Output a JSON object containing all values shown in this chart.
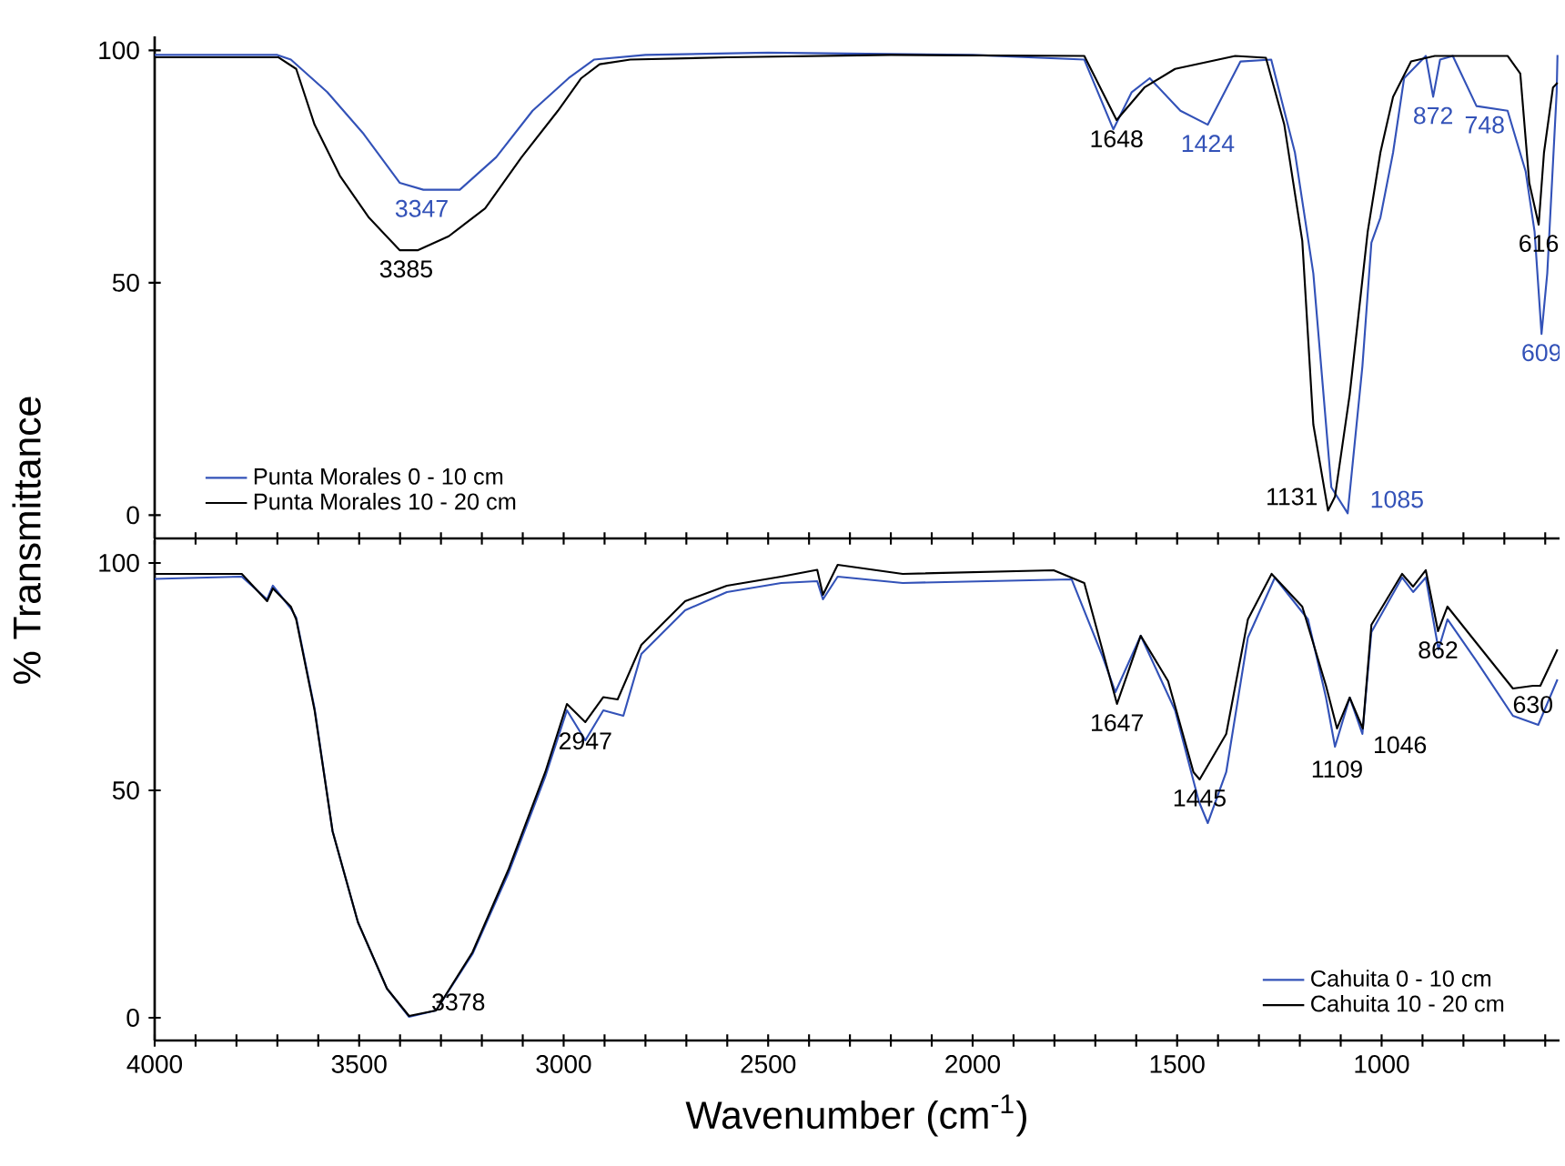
{
  "chart_data": [
    {
      "type": "line",
      "xlim": [
        4000,
        565
      ],
      "ylim": [
        -5,
        103
      ],
      "tick_labels": "y",
      "legend": "bottom left",
      "line_style": "solid",
      "xticks": [
        4000,
        {
          "value": 3900,
          "label": null
        },
        {
          "value": 3800,
          "label": null
        },
        {
          "value": 3700,
          "label": null
        },
        {
          "value": 3600,
          "label": null
        },
        3500,
        {
          "value": 3400,
          "label": null
        },
        {
          "value": 3300,
          "label": null
        },
        {
          "value": 3200,
          "label": null
        },
        {
          "value": 3100,
          "label": null
        },
        3000,
        {
          "value": 2900,
          "label": null
        },
        {
          "value": 2800,
          "label": null
        },
        {
          "value": 2700,
          "label": null
        },
        {
          "value": 2600,
          "label": null
        },
        2500,
        {
          "value": 2400,
          "label": null
        },
        {
          "value": 2300,
          "label": null
        },
        {
          "value": 2200,
          "label": null
        },
        {
          "value": 2100,
          "label": null
        },
        2000,
        {
          "value": 1900,
          "label": null
        },
        {
          "value": 1800,
          "label": null
        },
        {
          "value": 1700,
          "label": null
        },
        {
          "value": 1600,
          "label": null
        },
        1500,
        {
          "value": 1400,
          "label": null
        },
        {
          "value": 1300,
          "label": null
        },
        {
          "value": 1200,
          "label": null
        },
        {
          "value": 1100,
          "label": null
        },
        1000,
        {
          "value": 900,
          "label": null
        },
        {
          "value": 800,
          "label": null
        },
        {
          "value": 700,
          "label": null
        },
        {
          "value": 600,
          "label": null
        }
      ],
      "yticks": [
        0,
        50,
        100
      ],
      "series": [
        {
          "name": "Punta Morales 0 - 10 cm",
          "color": "#3352b8",
          "x": [
            4000,
            3900,
            3800,
            3700,
            3667,
            3578,
            3489,
            3401,
            3343,
            3254,
            3165,
            3076,
            2988,
            2926,
            2800,
            2500,
            2000,
            1727,
            1656,
            1611,
            1567,
            1492,
            1425,
            1345,
            1270,
            1212,
            1167,
            1123,
            1083,
            1047,
            1025,
            1003,
            972,
            945,
            892,
            874,
            857,
            826,
            768,
            692,
            648,
            626,
            609,
            595,
            572,
            570
          ],
          "values": [
            99,
            99,
            99,
            99,
            98,
            91,
            82,
            71.5,
            70,
            70,
            77,
            87,
            94,
            98,
            99,
            99.5,
            99,
            98,
            83,
            91,
            94,
            87,
            84,
            97.6,
            98,
            78,
            52,
            6,
            0.4,
            32,
            58.6,
            64,
            78,
            94,
            98.8,
            90,
            98,
            98.8,
            88,
            87,
            74,
            61,
            39,
            52,
            91,
            99
          ]
        },
        {
          "name": "Punta Morales 10 - 20 cm",
          "color": "#000000",
          "x": [
            4000,
            3800,
            3698,
            3654,
            3609,
            3547,
            3476,
            3401,
            3356,
            3281,
            3192,
            3103,
            3014,
            2957,
            2912,
            2837,
            2600,
            2200,
            1727,
            1648,
            1580,
            1505,
            1358,
            1283,
            1238,
            1194,
            1167,
            1131,
            1114,
            1078,
            1034,
            1003,
            972,
            928,
            870,
            692,
            661,
            639,
            616,
            603,
            581,
            570
          ],
          "values": [
            98.5,
            98.5,
            98.5,
            96,
            84,
            73,
            64,
            57,
            57,
            60,
            66,
            77,
            87,
            94,
            97,
            98,
            98.5,
            99,
            98.8,
            85,
            92,
            96,
            98.8,
            98.4,
            84,
            59,
            19.5,
            1,
            4,
            26,
            61,
            78,
            90,
            97.6,
            98.8,
            98.8,
            95,
            71.5,
            62.5,
            78,
            92,
            93
          ]
        }
      ],
      "annotations": [
        {
          "text": "3347",
          "x": 3347,
          "y": 70
        },
        {
          "text": "3385",
          "x": 3385,
          "y": 57
        },
        {
          "text": "1648",
          "x": 1648,
          "y": 85
        },
        {
          "text": "1424",
          "x": 1425,
          "y": 84
        },
        {
          "text": "872",
          "x": 874,
          "y": 90
        },
        {
          "text": "748",
          "x": 748,
          "y": 88
        },
        {
          "text": "616",
          "x": 616,
          "y": 62.5
        },
        {
          "text": "609",
          "x": 609,
          "y": 39
        },
        {
          "text": "1131",
          "x": 1131,
          "y": 1
        },
        {
          "text": "1085",
          "x": 1083,
          "y": 0.4
        }
      ]
    },
    {
      "type": "line",
      "xlim": [
        4000,
        565
      ],
      "ylim": [
        -5,
        105
      ],
      "xlabel": "Wavenumber (cm$^{-1}$)",
      "ylabel": "% Transmittance",
      "legend": "bottom right",
      "line_style": "solid",
      "xticks": [
        4000,
        {
          "value": 3900,
          "label": null
        },
        {
          "value": 3800,
          "label": null
        },
        {
          "value": 3700,
          "label": null
        },
        {
          "value": 3600,
          "label": null
        },
        3500,
        {
          "value": 3400,
          "label": null
        },
        {
          "value": 3300,
          "label": null
        },
        {
          "value": 3200,
          "label": null
        },
        {
          "value": 3100,
          "label": null
        },
        3000,
        {
          "value": 2900,
          "label": null
        },
        {
          "value": 2800,
          "label": null
        },
        {
          "value": 2700,
          "label": null
        },
        {
          "value": 2600,
          "label": null
        },
        2500,
        {
          "value": 2400,
          "label": null
        },
        {
          "value": 2300,
          "label": null
        },
        {
          "value": 2200,
          "label": null
        },
        {
          "value": 2100,
          "label": null
        },
        2000,
        {
          "value": 1900,
          "label": null
        },
        {
          "value": 1800,
          "label": null
        },
        {
          "value": 1700,
          "label": null
        },
        {
          "value": 1600,
          "label": null
        },
        1500,
        {
          "value": 1400,
          "label": null
        },
        {
          "value": 1300,
          "label": null
        },
        {
          "value": 1200,
          "label": null
        },
        {
          "value": 1100,
          "label": null
        },
        1000,
        {
          "value": 900,
          "label": null
        },
        {
          "value": 800,
          "label": null
        },
        {
          "value": 700,
          "label": null
        },
        {
          "value": 600,
          "label": null
        }
      ],
      "yticks": [
        0,
        50,
        100
      ],
      "series": [
        {
          "name": "Cahuita 0 - 10 cm",
          "color": "#3352b8",
          "x": [
            4000,
            3787,
            3725,
            3711,
            3667,
            3654,
            3609,
            3565,
            3503,
            3432,
            3378,
            3312,
            3223,
            3134,
            3045,
            2992,
            2947,
            2903,
            2854,
            2810,
            2703,
            2601,
            2468,
            2380,
            2366,
            2330,
            2171,
            1758,
            1683,
            1651,
            1589,
            1505,
            1447,
            1425,
            1380,
            1327,
            1261,
            1180,
            1136,
            1114,
            1078,
            1047,
            1025,
            950,
            923,
            892,
            861,
            839,
            768,
            679,
            617,
            570
          ],
          "values": [
            96.5,
            97,
            92,
            95,
            90,
            88,
            68,
            41,
            21,
            6.4,
            0.2,
            1.6,
            14,
            32,
            53,
            67.6,
            61,
            67.6,
            66.4,
            80,
            89.6,
            93.6,
            95.6,
            96,
            92,
            97,
            95.6,
            96.4,
            79.6,
            71.6,
            84,
            67.6,
            47.6,
            42.8,
            54,
            83.6,
            96.8,
            87.6,
            70.4,
            59.6,
            70.4,
            62.4,
            84.8,
            96.8,
            93.6,
            96.8,
            81,
            87.6,
            78.4,
            66.4,
            64.4,
            74.4
          ]
        },
        {
          "name": "Cahuita 10 - 20 cm",
          "color": "#000000",
          "x": [
            4000,
            3787,
            3725,
            3711,
            3667,
            3654,
            3609,
            3565,
            3503,
            3432,
            3378,
            3312,
            3223,
            3134,
            3045,
            2992,
            2947,
            2903,
            2868,
            2810,
            2703,
            2601,
            2468,
            2380,
            2366,
            2330,
            2171,
            1802,
            1727,
            1683,
            1647,
            1589,
            1522,
            1460,
            1445,
            1380,
            1327,
            1269,
            1194,
            1136,
            1109,
            1078,
            1046,
            1025,
            990,
            950,
            923,
            892,
            862,
            839,
            768,
            679,
            630,
            612,
            570
          ],
          "values": [
            97.6,
            97.6,
            91.6,
            94.4,
            90.4,
            87.6,
            67.6,
            41,
            21,
            6.4,
            0.4,
            1.6,
            14.4,
            32.8,
            54,
            69,
            65,
            70.5,
            70,
            82,
            91.6,
            95,
            97,
            98.5,
            93,
            99.6,
            97.6,
            98.4,
            95.6,
            81,
            69,
            84,
            74,
            54,
            52.4,
            62.4,
            87.6,
            97.6,
            90.4,
            73,
            63.6,
            70.4,
            63.6,
            86.4,
            91.6,
            97.6,
            94.8,
            98.4,
            85,
            90.4,
            82.4,
            72.4,
            73,
            73,
            81
          ]
        }
      ],
      "annotations": [
        {
          "text": "3378",
          "x": 3378,
          "y": 0.4
        },
        {
          "text": "2947",
          "x": 2947,
          "y": 65
        },
        {
          "text": "1647",
          "x": 1647,
          "y": 69
        },
        {
          "text": "1445",
          "x": 1445,
          "y": 52.4
        },
        {
          "text": "1109",
          "x": 1109,
          "y": 63.6
        },
        {
          "text": "1046",
          "x": 1046,
          "y": 63.6
        },
        {
          "text": "862",
          "x": 862,
          "y": 85
        },
        {
          "text": "630",
          "x": 630,
          "y": 73
        }
      ]
    }
  ]
}
